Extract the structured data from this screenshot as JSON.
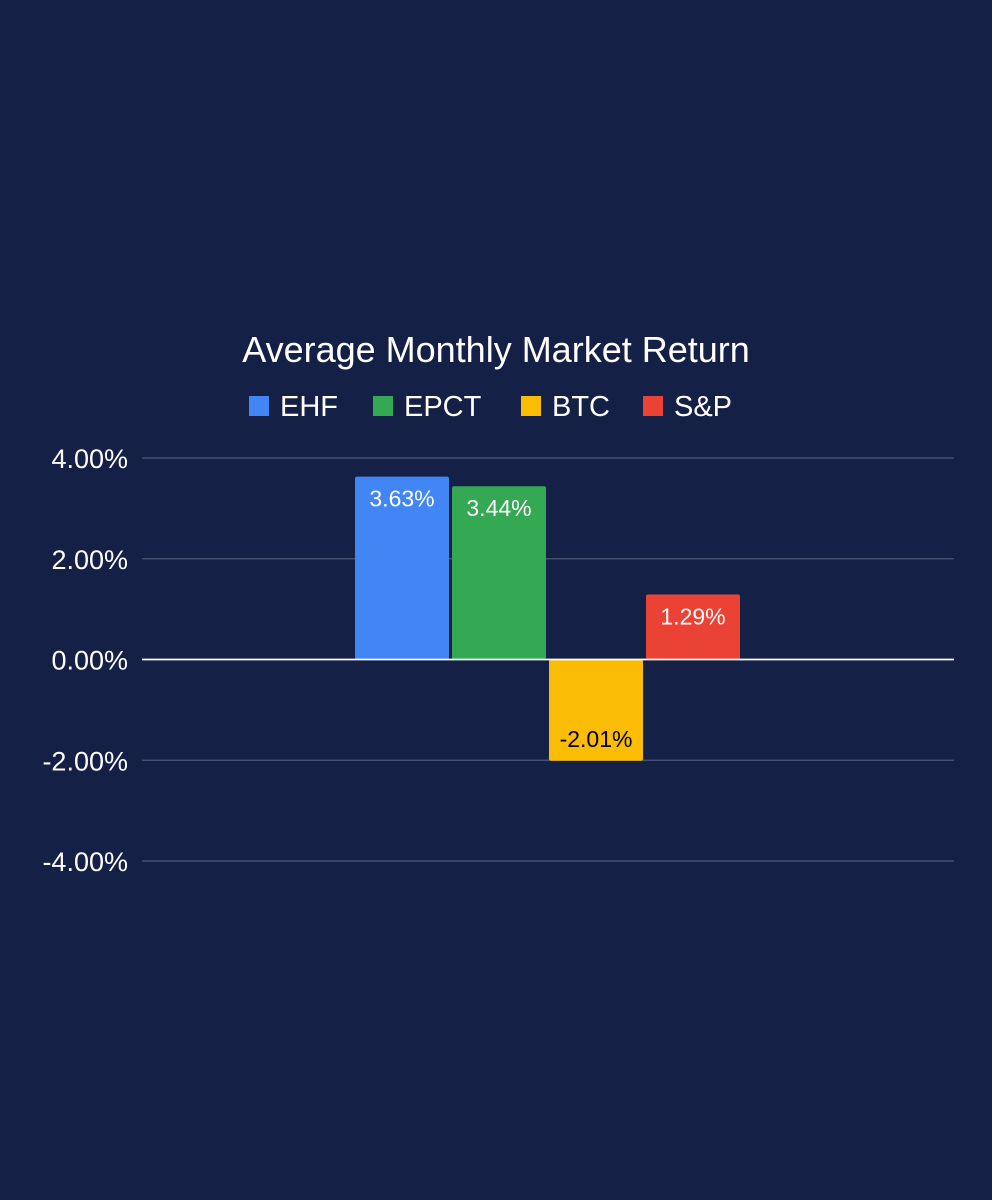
{
  "chart_data": {
    "type": "bar",
    "title": "Average Monthly Market Return",
    "categories": [
      "EHF",
      "EPCT",
      "BTC",
      "S&P"
    ],
    "values": [
      3.63,
      3.44,
      -2.01,
      1.29
    ],
    "value_labels": [
      "3.63%",
      "3.44%",
      "-2.01%",
      "1.29%"
    ],
    "colors": [
      "#4285f4",
      "#34a853",
      "#fbbc04",
      "#ea4335"
    ],
    "label_colors": [
      "#ffffff",
      "#ffffff",
      "#000000",
      "#ffffff"
    ],
    "legend": [
      {
        "name": "EHF",
        "color": "#4285f4"
      },
      {
        "name": "EPCT",
        "color": "#34a853"
      },
      {
        "name": "BTC",
        "color": "#fbbc04"
      },
      {
        "name": "S&P",
        "color": "#ea4335"
      }
    ],
    "legend_position": "top",
    "ylim": [
      -4,
      4
    ],
    "yticks": [
      4,
      2,
      0,
      -2,
      -4
    ],
    "ytick_labels": [
      "4.00%",
      "2.00%",
      "0.00%",
      "-2.00%",
      "-4.00%"
    ],
    "grid": true,
    "xlabel": "",
    "ylabel": "",
    "background": "#152046"
  }
}
